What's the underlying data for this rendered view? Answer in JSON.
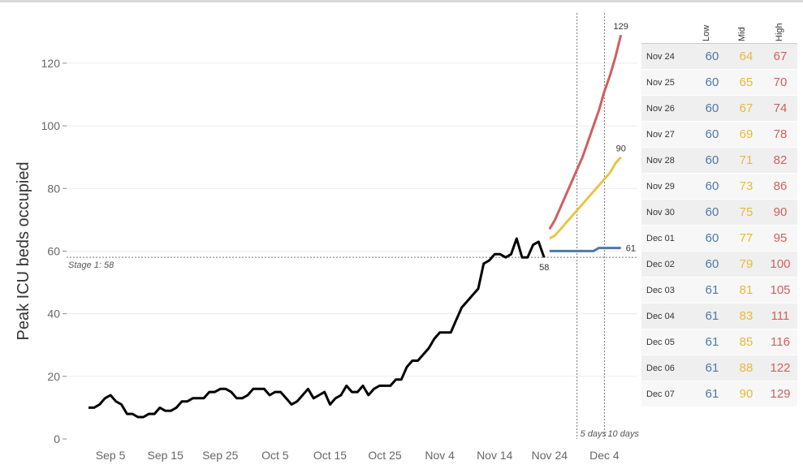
{
  "chart_data": {
    "type": "line",
    "ylabel": "Peak ICU beds occupied",
    "xlabel": "",
    "ylim": [
      0,
      135
    ],
    "y_ticks": [
      0,
      20,
      40,
      60,
      80,
      100,
      120
    ],
    "x_tick_labels": [
      "Sep 5",
      "Sep 15",
      "Sep 25",
      "Oct 5",
      "Oct 15",
      "Oct 25",
      "Nov 4",
      "Nov 14",
      "Nov 24",
      "Dec 4"
    ],
    "x_tick_days": [
      5,
      15,
      25,
      35,
      45,
      55,
      65,
      75,
      85,
      95
    ],
    "x_range_days": [
      -3,
      101
    ],
    "grid": "horizontal",
    "observed": {
      "start_day": 1,
      "values": [
        10,
        10,
        11,
        13,
        14,
        12,
        11,
        8,
        8,
        7,
        7,
        8,
        8,
        10,
        9,
        9,
        10,
        12,
        12,
        13,
        13,
        13,
        15,
        15,
        16,
        16,
        15,
        13,
        13,
        14,
        16,
        16,
        16,
        14,
        15,
        15,
        13,
        11,
        12,
        14,
        16,
        13,
        14,
        15,
        11,
        13,
        14,
        17,
        15,
        15,
        17,
        14,
        16,
        17,
        17,
        17,
        19,
        19,
        23,
        25,
        25,
        27,
        29,
        32,
        34,
        34,
        34,
        38,
        42,
        44,
        46,
        48,
        56,
        57,
        59,
        59,
        58,
        59,
        64,
        58,
        58,
        62,
        63,
        58
      ]
    },
    "series": [
      {
        "name": "Low",
        "color": "#4e79a7",
        "start_day": 85,
        "values": [
          60,
          60,
          60,
          60,
          60,
          60,
          60,
          60,
          60,
          61,
          61,
          61,
          61,
          61
        ]
      },
      {
        "name": "Mid",
        "color": "#e8c547",
        "start_day": 85,
        "values": [
          64,
          65,
          67,
          69,
          71,
          73,
          75,
          77,
          79,
          81,
          83,
          85,
          88,
          90
        ]
      },
      {
        "name": "High",
        "color": "#cf5f61",
        "start_day": 85,
        "values": [
          67,
          70,
          74,
          78,
          82,
          86,
          90,
          95,
          100,
          105,
          111,
          116,
          122,
          129
        ]
      }
    ],
    "reference_line": {
      "value": 58,
      "label": "Stage 1: 58"
    },
    "vertical_markers": [
      {
        "day": 90,
        "label": "5 days"
      },
      {
        "day": 95,
        "label": "10 days"
      }
    ],
    "annotations": {
      "last_observed": "58",
      "end_low": "61",
      "end_mid": "90",
      "end_high": "129"
    }
  },
  "table": {
    "columns": [
      "Low",
      "Mid",
      "High"
    ],
    "rows": [
      {
        "date": "Nov 24",
        "low": "60",
        "mid": "64",
        "high": "67"
      },
      {
        "date": "Nov 25",
        "low": "60",
        "mid": "65",
        "high": "70"
      },
      {
        "date": "Nov 26",
        "low": "60",
        "mid": "67",
        "high": "74"
      },
      {
        "date": "Nov 27",
        "low": "60",
        "mid": "69",
        "high": "78"
      },
      {
        "date": "Nov 28",
        "low": "60",
        "mid": "71",
        "high": "82"
      },
      {
        "date": "Nov 29",
        "low": "60",
        "mid": "73",
        "high": "86"
      },
      {
        "date": "Nov 30",
        "low": "60",
        "mid": "75",
        "high": "90"
      },
      {
        "date": "Dec 01",
        "low": "60",
        "mid": "77",
        "high": "95"
      },
      {
        "date": "Dec 02",
        "low": "60",
        "mid": "79",
        "high": "100"
      },
      {
        "date": "Dec 03",
        "low": "61",
        "mid": "81",
        "high": "105"
      },
      {
        "date": "Dec 04",
        "low": "61",
        "mid": "83",
        "high": "111"
      },
      {
        "date": "Dec 05",
        "low": "61",
        "mid": "85",
        "high": "116"
      },
      {
        "date": "Dec 06",
        "low": "61",
        "mid": "88",
        "high": "122"
      },
      {
        "date": "Dec 07",
        "low": "61",
        "mid": "90",
        "high": "129"
      }
    ]
  }
}
